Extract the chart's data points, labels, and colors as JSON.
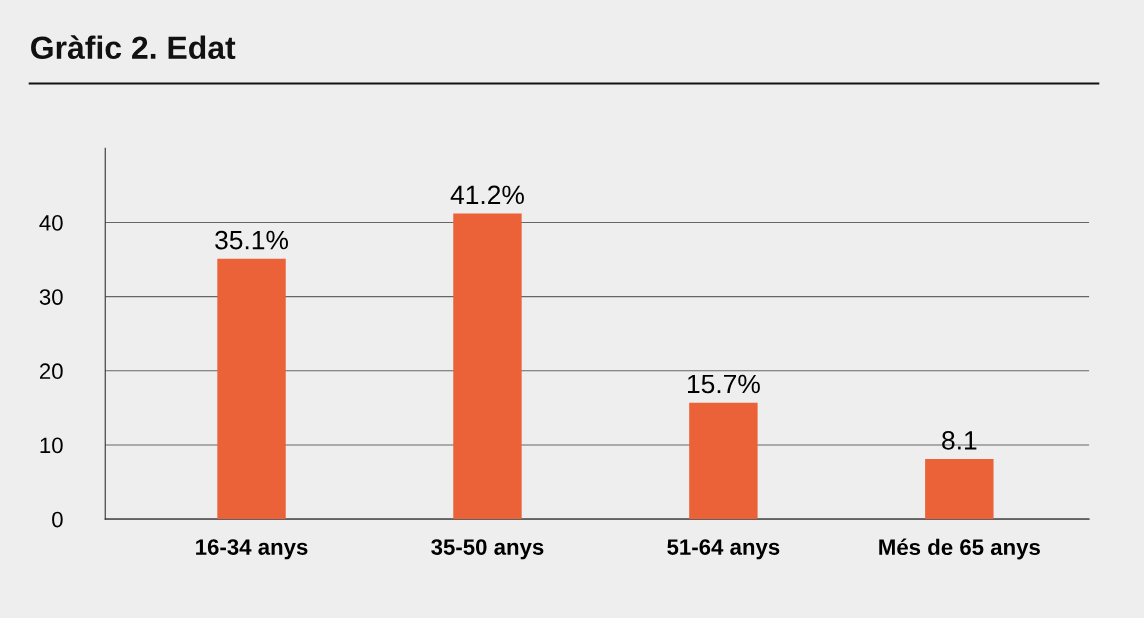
{
  "chart_data": {
    "type": "bar",
    "title": "Gràfic 2. Edat",
    "categories": [
      "16-34 anys",
      "35-50 anys",
      "51-64 anys",
      "Més de 65 anys"
    ],
    "values": [
      35.1,
      41.2,
      15.7,
      8.1
    ],
    "value_labels": [
      "35.1%",
      "41.2%",
      "15.7%",
      "8.1"
    ],
    "color": "#ec6238",
    "ylim": [
      0,
      50
    ],
    "yticks": [
      0,
      10,
      20,
      30,
      40
    ],
    "grid": "y",
    "legend": false
  }
}
